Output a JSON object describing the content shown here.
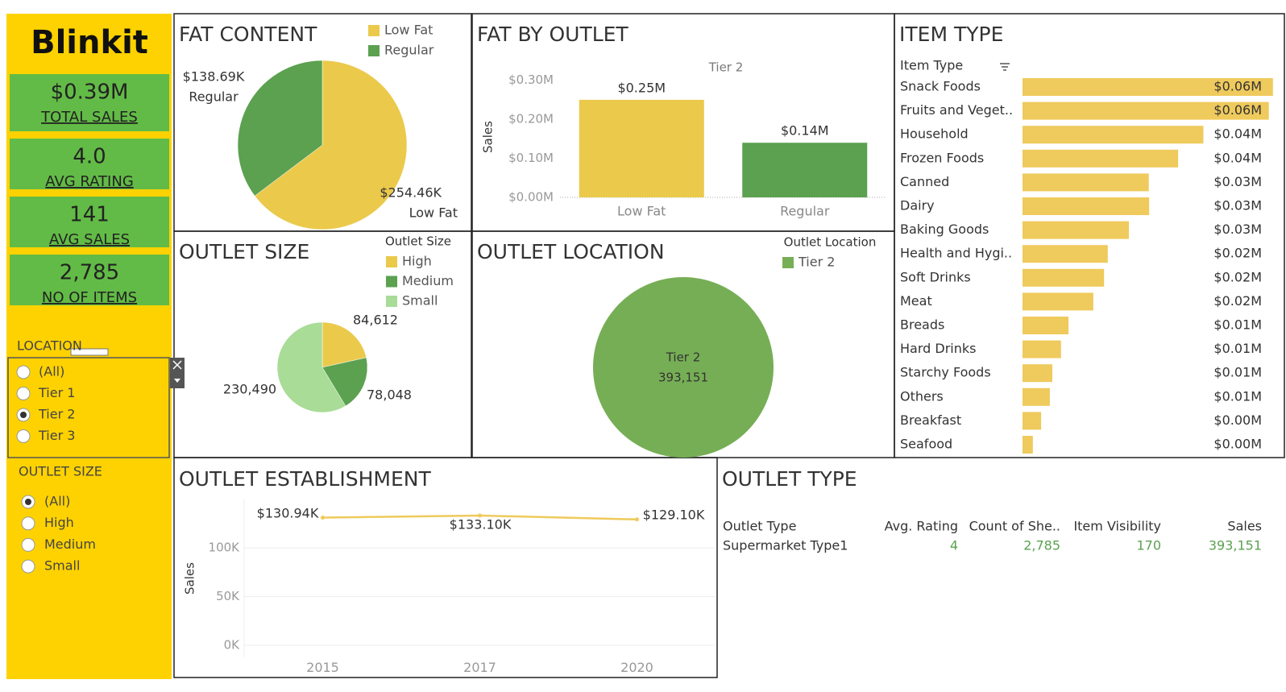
{
  "sidebar": {
    "logo": "Blinkit",
    "kpis": [
      {
        "value": "$0.39M",
        "label": "TOTAL SALES"
      },
      {
        "value": "4.0",
        "label": "AVG RATING"
      },
      {
        "value": "141",
        "label": "AVG SALES"
      },
      {
        "value": "2,785",
        "label": "NO OF ITEMS"
      }
    ],
    "filters": [
      {
        "title": "LOCATION",
        "options": [
          "(All)",
          "Tier 1",
          "Tier 2",
          "Tier 3"
        ],
        "selected": 2
      },
      {
        "title": "OUTLET SIZE",
        "options": [
          "(All)",
          "High",
          "Medium",
          "Small"
        ],
        "selected": 0
      }
    ]
  },
  "chart_data": [
    {
      "type": "pie",
      "title": "FAT CONTENT",
      "categories": [
        "Low Fat",
        "Regular"
      ],
      "values": [
        254.46,
        138.69
      ],
      "value_labels": [
        "$254.46K",
        "$138.69K"
      ],
      "colors": [
        "#ebc94b",
        "#5ba150"
      ],
      "legend": "top-right"
    },
    {
      "type": "bar",
      "title": "FAT BY OUTLET",
      "header": "Tier 2",
      "y_label": "Sales",
      "categories": [
        "Low Fat",
        "Regular"
      ],
      "values": [
        0.25,
        0.14
      ],
      "value_labels": [
        "$0.25M",
        "$0.14M"
      ],
      "colors": [
        "#ebc94b",
        "#5ba150"
      ],
      "ylim": [
        0,
        0.32
      ],
      "yticks": [
        {
          "value": 0,
          "label": "$0.00M"
        },
        {
          "value": 0.1,
          "label": "$0.10M"
        },
        {
          "value": 0.2,
          "label": "$0.20M"
        },
        {
          "value": 0.3,
          "label": "$0.30M"
        }
      ]
    },
    {
      "type": "pie",
      "title": "OUTLET SIZE",
      "legend_title": "Outlet Size",
      "categories": [
        "High",
        "Medium",
        "Small"
      ],
      "values": [
        84612,
        78048,
        230490
      ],
      "value_labels": [
        "84,612",
        "78,048",
        "230,490"
      ],
      "colors": [
        "#ebc94b",
        "#5ba150",
        "#a8dc97"
      ],
      "legend": "top-right"
    },
    {
      "type": "pie",
      "title": "OUTLET LOCATION",
      "legend_title": "Outlet Location",
      "categories": [
        "Tier 2"
      ],
      "values": [
        393151
      ],
      "value_labels": [
        "393,151"
      ],
      "colors": [
        "#76ae55"
      ],
      "legend": "top-right"
    },
    {
      "type": "hbar",
      "title": "ITEM TYPE",
      "header": "Item Type",
      "color": "#efca5c",
      "xlim": [
        0,
        0.0584
      ],
      "categories": [
        "Snack Foods",
        "Fruits and Veget..",
        "Household",
        "Frozen Foods",
        "Canned",
        "Dairy",
        "Baking Goods",
        "Health and Hygi..",
        "Soft Drinks",
        "Meat",
        "Breads",
        "Hard Drinks",
        "Starchy Foods",
        "Others",
        "Breakfast",
        "Seafood"
      ],
      "values": [
        0.0605,
        0.0595,
        0.0437,
        0.0376,
        0.0305,
        0.0306,
        0.0257,
        0.0206,
        0.0197,
        0.0171,
        0.0111,
        0.0093,
        0.0072,
        0.0066,
        0.0045,
        0.0025
      ],
      "value_labels": [
        "$0.06M",
        "$0.06M",
        "$0.04M",
        "$0.04M",
        "$0.03M",
        "$0.03M",
        "$0.03M",
        "$0.02M",
        "$0.02M",
        "$0.02M",
        "$0.01M",
        "$0.01M",
        "$0.01M",
        "$0.01M",
        "$0.00M",
        "$0.00M"
      ]
    },
    {
      "type": "line",
      "title": "OUTLET ESTABLISHMENT",
      "y_label": "Sales",
      "categories": [
        "2015",
        "2017",
        "2020"
      ],
      "values": [
        130940,
        133100,
        129100
      ],
      "value_labels": [
        "$130.94K",
        "$133.10K",
        "$129.10K"
      ],
      "color": "#efca5c",
      "grid": true,
      "ylim": [
        -12000,
        150000
      ],
      "yticks": [
        {
          "value": 0,
          "label": "0K"
        },
        {
          "value": 50000,
          "label": "50K"
        },
        {
          "value": 100000,
          "label": "100K"
        }
      ]
    },
    {
      "type": "table",
      "title": "OUTLET TYPE",
      "columns": [
        "Outlet Type",
        "Avg. Rating",
        "Count of She..",
        "Item Visibility",
        "Sales"
      ],
      "rows": [
        [
          "Supermarket Type1",
          "4",
          "2,785",
          "170",
          "393,151"
        ]
      ],
      "value_color": "#5ba150"
    }
  ]
}
